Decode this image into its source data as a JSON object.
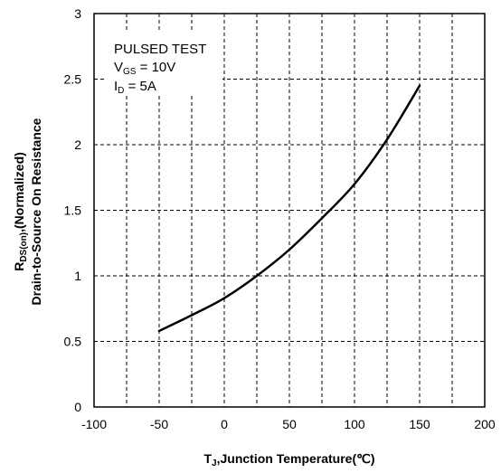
{
  "chart_data": {
    "type": "line",
    "title": "",
    "xlabel": {
      "main": "T",
      "sub": "J",
      "rest": ",Junction Temperature(℃)"
    },
    "ylabel": {
      "line1_main": "R",
      "line1_sub": "DS(on)",
      "line1_rest": ",(Normalized)",
      "line2": "Drain-to-Source  On Resistance"
    },
    "xlim": [
      -100,
      200
    ],
    "ylim": [
      0,
      3
    ],
    "xticks": [
      "-100",
      "-50",
      "0",
      "50",
      "100",
      "150",
      "200"
    ],
    "yticks": [
      "0",
      "0.5",
      "1",
      "1.5",
      "2",
      "2.5",
      "3"
    ],
    "grid": true,
    "annotations": [
      {
        "main": "PULSED TEST",
        "sub": "",
        "rest": ""
      },
      {
        "main": "V",
        "sub": "GS",
        "rest": " = 10V"
      },
      {
        "main": "I",
        "sub": "D",
        "rest": " = 5A"
      }
    ],
    "series": [
      {
        "x": [
          -50,
          -25,
          0,
          25,
          50,
          75,
          100,
          125,
          150
        ],
        "y": [
          0.58,
          0.7,
          0.83,
          1.0,
          1.2,
          1.44,
          1.7,
          2.04,
          2.45
        ]
      }
    ]
  }
}
